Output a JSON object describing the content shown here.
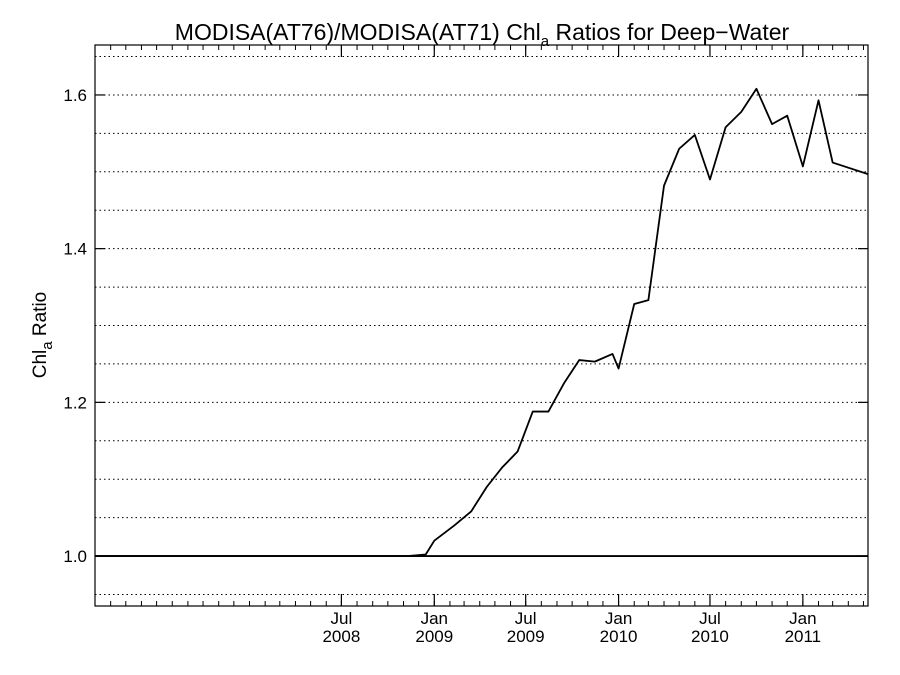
{
  "chart_data": {
    "type": "line",
    "title": {
      "prefix": "MODISA(AT76)/MODISA(AT71)  Chl",
      "subscript": "a",
      "suffix": " Ratios for Deep−Water"
    },
    "ylabel": {
      "main": "Chl",
      "subscript": "a",
      "suffix": " Ratio"
    },
    "xlim": [
      "2007-03-01",
      "2011-05-10"
    ],
    "ylim": [
      0.935,
      1.665
    ],
    "y_ticks": [
      {
        "value": 1.0,
        "label": "1.0"
      },
      {
        "value": 1.2,
        "label": "1.2"
      },
      {
        "value": 1.4,
        "label": "1.4"
      },
      {
        "value": 1.6,
        "label": "1.6"
      }
    ],
    "y_gridlines": [
      0.95,
      1.0,
      1.05,
      1.1,
      1.15,
      1.2,
      1.25,
      1.3,
      1.35,
      1.4,
      1.45,
      1.5,
      1.55,
      1.6,
      1.65
    ],
    "x_ticks": [
      {
        "date": "2008-07-01",
        "label_top": "Jul",
        "label_bottom": "2008"
      },
      {
        "date": "2009-01-01",
        "label_top": "Jan",
        "label_bottom": "2009"
      },
      {
        "date": "2009-07-01",
        "label_top": "Jul",
        "label_bottom": "2009"
      },
      {
        "date": "2010-01-01",
        "label_top": "Jan",
        "label_bottom": "2010"
      },
      {
        "date": "2010-07-01",
        "label_top": "Jul",
        "label_bottom": "2010"
      },
      {
        "date": "2011-01-01",
        "label_top": "Jan",
        "label_bottom": "2011"
      }
    ],
    "grid": "horizontal dotted",
    "reference_line": 1.0,
    "series": [
      {
        "color": "#000000",
        "points": [
          {
            "x": "2007-03-01",
            "y": 1.0
          },
          {
            "x": "2008-11-10",
            "y": 1.0
          },
          {
            "x": "2008-12-15",
            "y": 1.002
          },
          {
            "x": "2009-01-01",
            "y": 1.02
          },
          {
            "x": "2009-02-10",
            "y": 1.04
          },
          {
            "x": "2009-03-15",
            "y": 1.058
          },
          {
            "x": "2009-04-15",
            "y": 1.09
          },
          {
            "x": "2009-05-15",
            "y": 1.115
          },
          {
            "x": "2009-06-15",
            "y": 1.136
          },
          {
            "x": "2009-07-15",
            "y": 1.188
          },
          {
            "x": "2009-08-15",
            "y": 1.188
          },
          {
            "x": "2009-09-15",
            "y": 1.225
          },
          {
            "x": "2009-10-15",
            "y": 1.255
          },
          {
            "x": "2009-11-15",
            "y": 1.253
          },
          {
            "x": "2009-12-20",
            "y": 1.263
          },
          {
            "x": "2010-01-01",
            "y": 1.244
          },
          {
            "x": "2010-02-01",
            "y": 1.328
          },
          {
            "x": "2010-03-01",
            "y": 1.333
          },
          {
            "x": "2010-04-01",
            "y": 1.482
          },
          {
            "x": "2010-05-01",
            "y": 1.53
          },
          {
            "x": "2010-06-01",
            "y": 1.548
          },
          {
            "x": "2010-07-01",
            "y": 1.49
          },
          {
            "x": "2010-08-01",
            "y": 1.558
          },
          {
            "x": "2010-09-01",
            "y": 1.578
          },
          {
            "x": "2010-10-01",
            "y": 1.608
          },
          {
            "x": "2010-11-01",
            "y": 1.562
          },
          {
            "x": "2010-12-01",
            "y": 1.573
          },
          {
            "x": "2011-01-01",
            "y": 1.507
          },
          {
            "x": "2011-02-01",
            "y": 1.593
          },
          {
            "x": "2011-03-01",
            "y": 1.512
          },
          {
            "x": "2011-05-10",
            "y": 1.497
          }
        ]
      }
    ]
  }
}
